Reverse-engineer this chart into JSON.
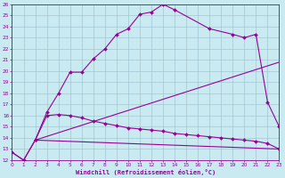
{
  "xlabel": "Windchill (Refroidissement éolien,°C)",
  "bg_color": "#c8eaf0",
  "line_color": "#990099",
  "grid_color": "#9bbfcc",
  "xlim": [
    0,
    23
  ],
  "ylim": [
    12,
    26
  ],
  "tick_fontsize": 4.2,
  "xlabel_fontsize": 5.0,
  "linewidth": 0.8,
  "markersize": 2.0,
  "top_curve_x": [
    0,
    1,
    2,
    3,
    4,
    5,
    6,
    7,
    8,
    9,
    10,
    11,
    12,
    13,
    14,
    17,
    19,
    20,
    21,
    22,
    23
  ],
  "top_curve_y": [
    12.7,
    12.0,
    13.8,
    16.3,
    18.0,
    19.9,
    19.9,
    21.1,
    22.0,
    23.3,
    23.8,
    25.1,
    25.3,
    26.0,
    25.5,
    23.8,
    23.3,
    23.0,
    23.3,
    17.2,
    15.0
  ],
  "diag_line_x": [
    2,
    23
  ],
  "diag_line_y": [
    13.8,
    20.8
  ],
  "bot_curve_x": [
    0,
    1,
    2,
    3,
    4,
    5,
    6,
    7,
    8,
    9,
    10,
    11,
    12,
    13,
    14,
    15,
    16,
    17,
    18,
    19,
    20,
    21,
    22,
    23
  ],
  "bot_curve_y": [
    12.7,
    12.0,
    13.8,
    16.0,
    16.1,
    16.0,
    15.8,
    15.5,
    15.3,
    15.1,
    14.9,
    14.8,
    14.7,
    14.6,
    14.4,
    14.3,
    14.2,
    14.1,
    14.0,
    13.9,
    13.8,
    13.7,
    13.5,
    13.0
  ],
  "flat_line_x": [
    2,
    23
  ],
  "flat_line_y": [
    13.8,
    13.0
  ]
}
